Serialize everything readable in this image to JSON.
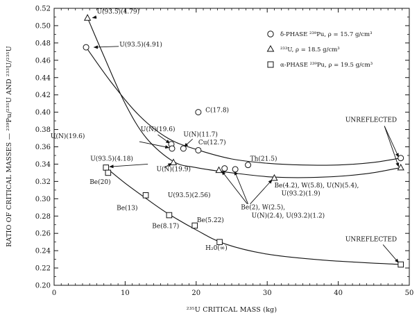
{
  "chart_data": {
    "type": "scatter",
    "xlabel": "²³⁵U CRITICAL MASS (kg)",
    "ylabel": "RATIO OF CRITICAL MASSES — ²³⁹Pu/²³⁵U AND ²³³U/²³⁵U",
    "xlim": [
      0,
      50
    ],
    "ylim": [
      0.2,
      0.52
    ],
    "xticks": [
      "0",
      "10",
      "20",
      "30",
      "40",
      "50"
    ],
    "yticks": [
      "0.20",
      "0.22",
      "0.24",
      "0.26",
      "0.28",
      "0.30",
      "0.32",
      "0.34",
      "0.36",
      "0.38",
      "0.40",
      "0.42",
      "0.44",
      "0.46",
      "0.48",
      "0.50",
      "0.52"
    ],
    "grid": false,
    "legend_position": "top-right",
    "series": [
      {
        "name": "δ-PHASE ²³⁹Pu, ρ = 15.7 g/cm³",
        "marker": "circle",
        "points": [
          [
            4.5,
            0.475
          ],
          [
            16.5,
            0.363
          ],
          [
            16.6,
            0.358
          ],
          [
            18.2,
            0.358
          ],
          [
            20.3,
            0.356
          ],
          [
            20.3,
            0.4
          ],
          [
            24.0,
            0.335
          ],
          [
            25.5,
            0.334
          ],
          [
            27.3,
            0.339
          ],
          [
            48.8,
            0.347
          ]
        ],
        "curve": [
          [
            4.5,
            0.475
          ],
          [
            8,
            0.435
          ],
          [
            12,
            0.396
          ],
          [
            16,
            0.37
          ],
          [
            20,
            0.357
          ],
          [
            25,
            0.346
          ],
          [
            30,
            0.341
          ],
          [
            35,
            0.339
          ],
          [
            40,
            0.339
          ],
          [
            45,
            0.342
          ],
          [
            48.8,
            0.347
          ]
        ]
      },
      {
        "name": "²³³U, ρ = 18.5 g/cm³",
        "marker": "triangle",
        "points": [
          [
            4.7,
            0.509
          ],
          [
            16.8,
            0.342
          ],
          [
            23.2,
            0.333
          ],
          [
            31.0,
            0.324
          ],
          [
            48.8,
            0.336
          ]
        ],
        "curve": [
          [
            4.7,
            0.509
          ],
          [
            7,
            0.465
          ],
          [
            10,
            0.41
          ],
          [
            13,
            0.37
          ],
          [
            16.8,
            0.343
          ],
          [
            20,
            0.336
          ],
          [
            25,
            0.33
          ],
          [
            31,
            0.325
          ],
          [
            38,
            0.325
          ],
          [
            44,
            0.329
          ],
          [
            48.8,
            0.336
          ]
        ]
      },
      {
        "name": "α-PHASE ²³⁹Pu, ρ = 19.5 g/cm³",
        "marker": "square",
        "points": [
          [
            7.3,
            0.336
          ],
          [
            7.6,
            0.33
          ],
          [
            12.9,
            0.304
          ],
          [
            16.2,
            0.281
          ],
          [
            19.8,
            0.269
          ],
          [
            23.3,
            0.25
          ],
          [
            48.8,
            0.224
          ]
        ],
        "curve": [
          [
            7.3,
            0.336
          ],
          [
            10,
            0.318
          ],
          [
            13,
            0.3
          ],
          [
            16,
            0.283
          ],
          [
            20,
            0.264
          ],
          [
            24,
            0.248
          ],
          [
            30,
            0.236
          ],
          [
            38,
            0.229
          ],
          [
            48.8,
            0.224
          ]
        ]
      }
    ],
    "annotations": [
      {
        "text": "U(93.5)(4.79)",
        "x": 6.0,
        "y": 0.514
      },
      {
        "text": "U(93.5)(4.91)",
        "x": 9.2,
        "y": 0.476
      },
      {
        "text": "U(N)(19.6)",
        "x": 12.2,
        "y": 0.378
      },
      {
        "text": "C(17.8)",
        "x": 21.3,
        "y": 0.4
      },
      {
        "text": "U(N)(11.7)",
        "x": 18.2,
        "y": 0.372
      },
      {
        "text": "U(N)(19.6)",
        "x": -0.5,
        "y": 0.37
      },
      {
        "text": "Cu(12.7)",
        "x": 20.3,
        "y": 0.363
      },
      {
        "text": "Th(21.5)",
        "x": 27.6,
        "y": 0.344
      },
      {
        "text": "U(N)(19.9)",
        "x": 14.4,
        "y": 0.332
      },
      {
        "text": "U(93.5)(4.18)",
        "x": 5.1,
        "y": 0.344
      },
      {
        "text": "Be(20)",
        "x": 5.0,
        "y": 0.317
      },
      {
        "text": "U(93.5)(2.56)",
        "x": 16.0,
        "y": 0.302
      },
      {
        "text": "Be(4.2), W(5.8), U(N)(5.4),",
        "x": 31.0,
        "y": 0.313
      },
      {
        "text": "U(93.2)(1.9)",
        "x": 32.0,
        "y": 0.304
      },
      {
        "text": "Be(13)",
        "x": 8.8,
        "y": 0.287
      },
      {
        "text": "Be(2), W(2.5),",
        "x": 26.3,
        "y": 0.288
      },
      {
        "text": "U(N)(2.4), U(93.2)(1.2)",
        "x": 27.8,
        "y": 0.278
      },
      {
        "text": "Be(8.17)",
        "x": 13.8,
        "y": 0.266
      },
      {
        "text": "Be(5.22)",
        "x": 20.1,
        "y": 0.273
      },
      {
        "text": "H₂0(∞)",
        "x": 21.3,
        "y": 0.241
      },
      {
        "text": "UNREFLECTED",
        "x": 41.0,
        "y": 0.389
      },
      {
        "text": "UNREFLECTED",
        "x": 41.0,
        "y": 0.251
      }
    ]
  }
}
